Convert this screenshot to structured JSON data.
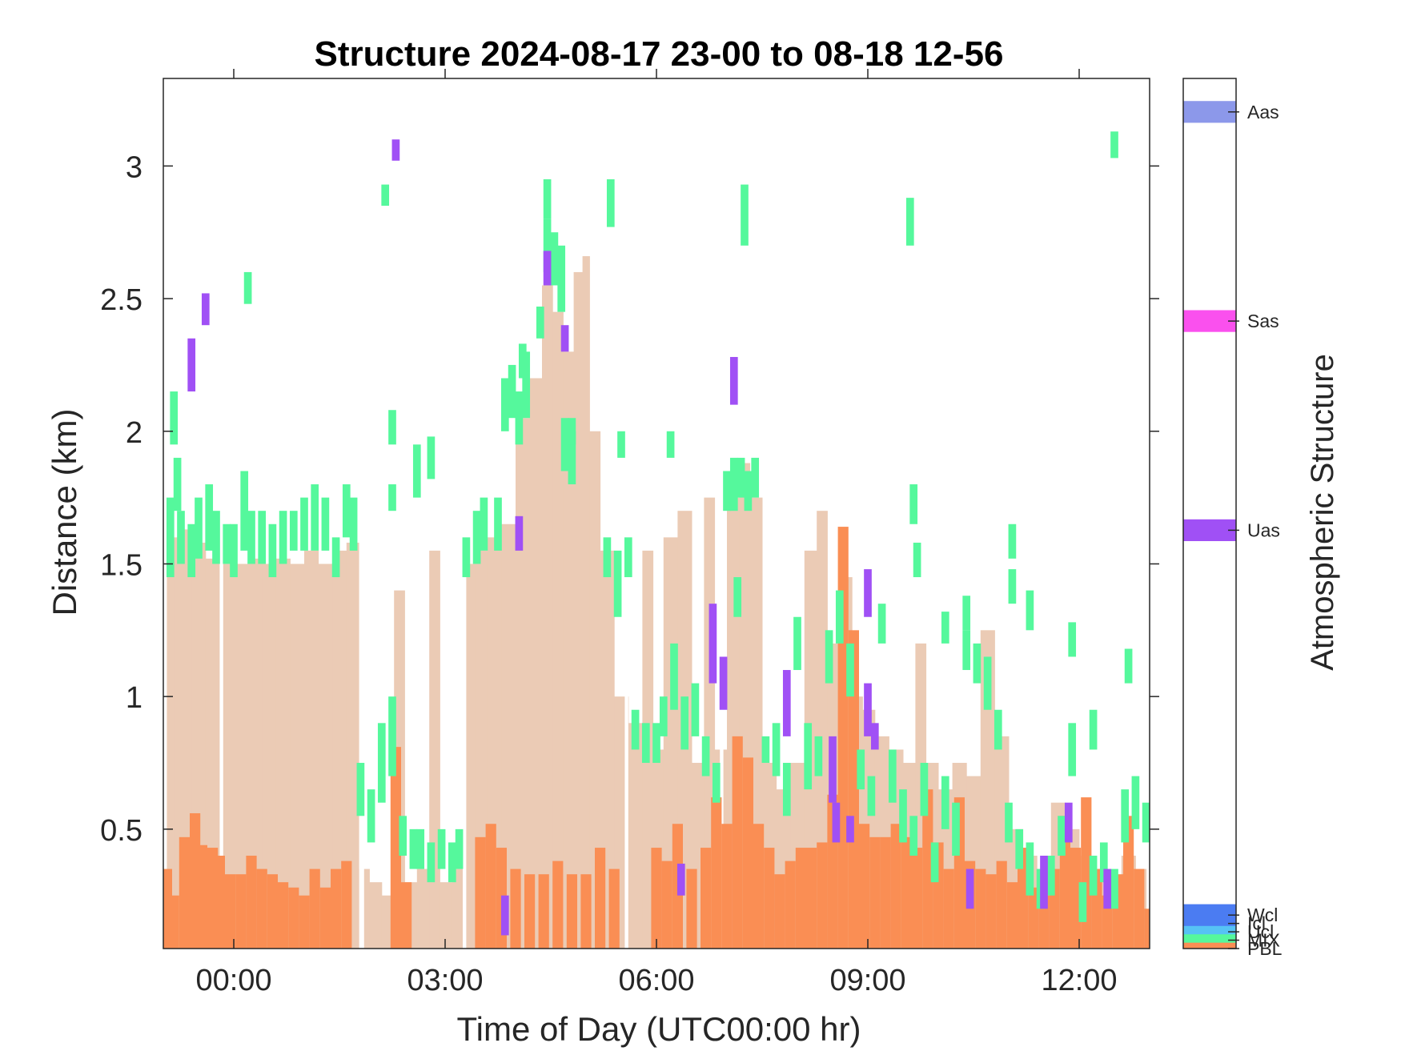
{
  "chart_data": {
    "type": "heatmap",
    "title": "Structure 2024-08-17 23-00 to 08-18 12-56",
    "xlabel": "Time of Day (UTC00:00 hr)",
    "ylabel": "Distance (km)",
    "colorbar_label": "Atmospheric Structure",
    "xlim_hours": [
      -1.0,
      13.0
    ],
    "ylim_km": [
      0.05,
      3.33
    ],
    "x_ticks": [
      {
        "value": 0,
        "label": "00:00"
      },
      {
        "value": 3,
        "label": "03:00"
      },
      {
        "value": 6,
        "label": "06:00"
      },
      {
        "value": 9,
        "label": "09:00"
      },
      {
        "value": 12,
        "label": "12:00"
      }
    ],
    "y_ticks": [
      {
        "value": 0.5,
        "label": "0.5"
      },
      {
        "value": 1.0,
        "label": "1"
      },
      {
        "value": 1.5,
        "label": "1.5"
      },
      {
        "value": 2.0,
        "label": "2"
      },
      {
        "value": 2.5,
        "label": "2.5"
      },
      {
        "value": 3.0,
        "label": "3"
      }
    ],
    "categories": [
      {
        "label": "PBL",
        "color": "#EBCBB5",
        "cbar_value": 0.0
      },
      {
        "label": "MIX",
        "color": "#FA8E54",
        "cbar_value": 0.1
      },
      {
        "label": "Ucl",
        "color": "#55F89C",
        "cbar_value": 0.2
      },
      {
        "label": "Icl",
        "color": "#56C2F5",
        "cbar_value": 0.3
      },
      {
        "label": "Wcl",
        "color": "#4B7CF2",
        "cbar_value": 0.4
      },
      {
        "label": "Uas",
        "color": "#A050F5",
        "cbar_value": 5.0
      },
      {
        "label": "Sas",
        "color": "#FA50EE",
        "cbar_value": 7.5
      },
      {
        "label": "Aas",
        "color": "#8C98EA",
        "cbar_value": 10.0
      }
    ],
    "cbar_range": [
      0,
      10.4
    ],
    "pbl_top_km": [
      [
        -0.9,
        1.58
      ],
      [
        -0.8,
        1.6
      ],
      [
        -0.7,
        1.63
      ],
      [
        -0.5,
        1.58
      ],
      [
        -0.3,
        1.52
      ],
      [
        -0.1,
        1.5
      ],
      [
        0.1,
        1.5
      ],
      [
        0.3,
        1.52
      ],
      [
        0.5,
        1.5
      ],
      [
        0.7,
        1.52
      ],
      [
        0.9,
        1.5
      ],
      [
        1.1,
        1.55
      ],
      [
        1.3,
        1.5
      ],
      [
        1.5,
        1.55
      ],
      [
        1.7,
        1.58
      ],
      [
        1.85,
        0.35
      ],
      [
        2.0,
        0.3
      ],
      [
        2.2,
        0.25
      ],
      [
        2.35,
        1.4
      ],
      [
        2.5,
        0.3
      ],
      [
        2.7,
        0.35
      ],
      [
        2.85,
        1.55
      ],
      [
        3.0,
        0.3
      ],
      [
        3.2,
        0.35
      ],
      [
        3.35,
        1.5
      ],
      [
        3.5,
        1.55
      ],
      [
        3.7,
        1.6
      ],
      [
        3.9,
        1.65
      ],
      [
        4.1,
        2.05
      ],
      [
        4.3,
        2.2
      ],
      [
        4.45,
        2.55
      ],
      [
        4.6,
        2.45
      ],
      [
        4.75,
        2.3
      ],
      [
        4.9,
        2.6
      ],
      [
        5.0,
        2.66
      ],
      [
        5.1,
        2.0
      ],
      [
        5.3,
        1.55
      ],
      [
        5.5,
        1.0
      ],
      [
        5.7,
        0.9
      ],
      [
        5.9,
        1.55
      ],
      [
        6.0,
        0.8
      ],
      [
        6.2,
        1.6
      ],
      [
        6.4,
        1.7
      ],
      [
        6.6,
        0.75
      ],
      [
        6.75,
        1.75
      ],
      [
        6.9,
        0.8
      ],
      [
        7.1,
        1.75
      ],
      [
        7.25,
        1.88
      ],
      [
        7.4,
        1.75
      ],
      [
        7.6,
        0.75
      ],
      [
        7.8,
        0.65
      ],
      [
        8.0,
        0.75
      ],
      [
        8.2,
        1.55
      ],
      [
        8.35,
        1.7
      ],
      [
        8.5,
        1.2
      ],
      [
        8.7,
        1.45
      ],
      [
        8.85,
        1.0
      ],
      [
        9.0,
        0.95
      ],
      [
        9.2,
        0.85
      ],
      [
        9.4,
        0.8
      ],
      [
        9.6,
        0.75
      ],
      [
        9.75,
        1.2
      ],
      [
        9.9,
        0.75
      ],
      [
        10.1,
        0.65
      ],
      [
        10.3,
        0.75
      ],
      [
        10.5,
        0.7
      ],
      [
        10.7,
        1.25
      ],
      [
        10.9,
        0.85
      ],
      [
        11.1,
        0.5
      ],
      [
        11.3,
        0.4
      ],
      [
        11.5,
        0.35
      ],
      [
        11.7,
        0.6
      ],
      [
        11.9,
        0.5
      ],
      [
        12.1,
        0.4
      ],
      [
        12.3,
        0.35
      ],
      [
        12.5,
        0.3
      ],
      [
        12.7,
        0.4
      ],
      [
        12.9,
        0.35
      ]
    ],
    "pbl_gaps_hours": [
      [
        -0.2,
        -0.15
      ],
      [
        1.78,
        1.85
      ],
      [
        3.25,
        3.3
      ],
      [
        5.55,
        5.6
      ],
      [
        6.9,
        6.95
      ]
    ],
    "mix_top_km": [
      [
        -0.95,
        0.35
      ],
      [
        -0.85,
        0.25
      ],
      [
        -0.7,
        0.47
      ],
      [
        -0.55,
        0.56
      ],
      [
        -0.45,
        0.44
      ],
      [
        -0.3,
        0.43
      ],
      [
        -0.2,
        0.4
      ],
      [
        -0.05,
        0.33
      ],
      [
        0.1,
        0.33
      ],
      [
        0.25,
        0.4
      ],
      [
        0.4,
        0.35
      ],
      [
        0.55,
        0.33
      ],
      [
        0.7,
        0.3
      ],
      [
        0.85,
        0.28
      ],
      [
        1.0,
        0.25
      ],
      [
        1.15,
        0.35
      ],
      [
        1.3,
        0.28
      ],
      [
        1.45,
        0.35
      ],
      [
        1.6,
        0.38
      ],
      [
        2.3,
        0.81
      ],
      [
        2.45,
        0.3
      ],
      [
        3.5,
        0.47
      ],
      [
        3.65,
        0.52
      ],
      [
        3.8,
        0.43
      ],
      [
        4.0,
        0.35
      ],
      [
        4.2,
        0.33
      ],
      [
        4.4,
        0.33
      ],
      [
        4.6,
        0.38
      ],
      [
        4.8,
        0.33
      ],
      [
        5.0,
        0.33
      ],
      [
        5.2,
        0.43
      ],
      [
        5.4,
        0.35
      ],
      [
        6.0,
        0.43
      ],
      [
        6.15,
        0.38
      ],
      [
        6.3,
        0.52
      ],
      [
        6.5,
        0.35
      ],
      [
        6.7,
        0.43
      ],
      [
        6.85,
        0.62
      ],
      [
        7.0,
        0.52
      ],
      [
        7.15,
        0.85
      ],
      [
        7.3,
        0.77
      ],
      [
        7.45,
        0.52
      ],
      [
        7.6,
        0.43
      ],
      [
        7.75,
        0.33
      ],
      [
        7.9,
        0.38
      ],
      [
        8.05,
        0.43
      ],
      [
        8.2,
        0.43
      ],
      [
        8.35,
        0.45
      ],
      [
        8.5,
        0.63
      ],
      [
        8.65,
        1.64
      ],
      [
        8.8,
        1.25
      ],
      [
        8.95,
        0.52
      ],
      [
        9.1,
        0.47
      ],
      [
        9.25,
        0.47
      ],
      [
        9.4,
        0.52
      ],
      [
        9.55,
        0.47
      ],
      [
        9.7,
        0.43
      ],
      [
        9.85,
        0.65
      ],
      [
        10.0,
        0.45
      ],
      [
        10.15,
        0.35
      ],
      [
        10.3,
        0.62
      ],
      [
        10.45,
        0.38
      ],
      [
        10.6,
        0.35
      ],
      [
        10.75,
        0.33
      ],
      [
        10.9,
        0.38
      ],
      [
        11.05,
        0.3
      ],
      [
        11.2,
        0.43
      ],
      [
        11.35,
        0.28
      ],
      [
        11.5,
        0.25
      ],
      [
        11.65,
        0.35
      ],
      [
        11.8,
        0.55
      ],
      [
        11.95,
        0.43
      ],
      [
        12.1,
        0.62
      ],
      [
        12.25,
        0.35
      ],
      [
        12.4,
        0.25
      ],
      [
        12.55,
        0.33
      ],
      [
        12.7,
        0.55
      ],
      [
        12.85,
        0.35
      ],
      [
        13.0,
        0.2
      ]
    ],
    "ucl_cells": [
      [
        -0.9,
        1.45,
        1.75
      ],
      [
        -0.8,
        1.7,
        1.9
      ],
      [
        -0.75,
        1.5,
        1.7
      ],
      [
        -0.6,
        1.45,
        1.65
      ],
      [
        -0.5,
        1.52,
        1.75
      ],
      [
        -0.35,
        1.55,
        1.8
      ],
      [
        -0.25,
        1.5,
        1.7
      ],
      [
        -0.1,
        1.5,
        1.65
      ],
      [
        0.0,
        1.45,
        1.65
      ],
      [
        0.15,
        1.55,
        1.85
      ],
      [
        0.25,
        1.5,
        1.7
      ],
      [
        0.4,
        1.5,
        1.7
      ],
      [
        0.55,
        1.45,
        1.65
      ],
      [
        0.7,
        1.5,
        1.7
      ],
      [
        0.85,
        1.55,
        1.7
      ],
      [
        1.0,
        1.55,
        1.75
      ],
      [
        1.15,
        1.55,
        1.8
      ],
      [
        1.3,
        1.55,
        1.75
      ],
      [
        1.45,
        1.45,
        1.6
      ],
      [
        1.6,
        1.6,
        1.8
      ],
      [
        1.7,
        1.55,
        1.75
      ],
      [
        1.8,
        0.55,
        0.75
      ],
      [
        1.95,
        0.45,
        0.65
      ],
      [
        2.1,
        0.6,
        0.9
      ],
      [
        2.25,
        0.7,
        1.0
      ],
      [
        2.4,
        0.4,
        0.55
      ],
      [
        2.55,
        0.35,
        0.5
      ],
      [
        2.65,
        0.35,
        0.5
      ],
      [
        2.8,
        0.3,
        0.45
      ],
      [
        2.95,
        0.35,
        0.5
      ],
      [
        3.1,
        0.3,
        0.45
      ],
      [
        3.2,
        0.35,
        0.5
      ],
      [
        3.3,
        1.45,
        1.6
      ],
      [
        3.45,
        1.5,
        1.7
      ],
      [
        3.55,
        1.55,
        1.75
      ],
      [
        3.75,
        1.55,
        1.75
      ],
      [
        3.85,
        2.0,
        2.2
      ],
      [
        3.95,
        2.05,
        2.25
      ],
      [
        4.05,
        1.95,
        2.15
      ],
      [
        4.15,
        2.05,
        2.3
      ],
      [
        4.45,
        2.6,
        2.8
      ],
      [
        4.55,
        2.55,
        2.75
      ],
      [
        4.65,
        2.45,
        2.7
      ],
      [
        4.7,
        1.85,
        2.05
      ],
      [
        4.8,
        1.8,
        2.0
      ],
      [
        5.3,
        1.45,
        1.6
      ],
      [
        5.45,
        1.3,
        1.55
      ],
      [
        5.6,
        1.45,
        1.6
      ],
      [
        5.7,
        0.8,
        0.95
      ],
      [
        5.85,
        0.75,
        0.9
      ],
      [
        6.0,
        0.75,
        0.9
      ],
      [
        6.1,
        0.85,
        1.0
      ],
      [
        6.25,
        0.95,
        1.2
      ],
      [
        6.4,
        0.8,
        1.0
      ],
      [
        6.55,
        0.85,
        1.05
      ],
      [
        6.7,
        0.7,
        0.85
      ],
      [
        6.85,
        0.6,
        0.75
      ],
      [
        7.0,
        1.7,
        1.85
      ],
      [
        7.1,
        1.7,
        1.9
      ],
      [
        7.2,
        1.75,
        1.9
      ],
      [
        7.3,
        1.7,
        1.85
      ],
      [
        7.4,
        1.75,
        1.9
      ],
      [
        7.55,
        0.75,
        0.85
      ],
      [
        7.7,
        0.7,
        0.9
      ],
      [
        7.85,
        0.55,
        0.75
      ],
      [
        8.0,
        1.1,
        1.3
      ],
      [
        8.15,
        0.65,
        0.9
      ],
      [
        8.3,
        0.7,
        0.85
      ],
      [
        8.45,
        1.05,
        1.25
      ],
      [
        8.6,
        1.2,
        1.4
      ],
      [
        8.75,
        1.0,
        1.2
      ],
      [
        8.9,
        0.65,
        0.8
      ],
      [
        9.05,
        0.55,
        0.7
      ],
      [
        9.2,
        1.2,
        1.35
      ],
      [
        9.35,
        0.6,
        0.8
      ],
      [
        9.5,
        0.45,
        0.65
      ],
      [
        9.65,
        0.4,
        0.55
      ],
      [
        9.8,
        0.55,
        0.75
      ],
      [
        9.95,
        0.3,
        0.45
      ],
      [
        10.1,
        0.5,
        0.7
      ],
      [
        10.25,
        0.4,
        0.6
      ],
      [
        10.4,
        1.1,
        1.25
      ],
      [
        10.55,
        1.05,
        1.2
      ],
      [
        10.7,
        0.95,
        1.15
      ],
      [
        10.85,
        0.8,
        0.95
      ],
      [
        11.0,
        0.45,
        0.6
      ],
      [
        11.15,
        0.35,
        0.5
      ],
      [
        11.3,
        0.25,
        0.45
      ],
      [
        11.45,
        0.2,
        0.35
      ],
      [
        11.6,
        0.25,
        0.4
      ],
      [
        11.75,
        0.4,
        0.55
      ],
      [
        11.9,
        0.7,
        0.9
      ],
      [
        12.05,
        0.15,
        0.3
      ],
      [
        12.2,
        0.25,
        0.4
      ],
      [
        12.35,
        0.3,
        0.45
      ],
      [
        12.5,
        0.2,
        0.35
      ],
      [
        12.65,
        0.45,
        0.65
      ],
      [
        12.8,
        0.5,
        0.7
      ],
      [
        12.95,
        0.45,
        0.6
      ]
    ],
    "ucl_isolated": [
      [
        -0.85,
        1.95,
        2.15
      ],
      [
        0.2,
        2.48,
        2.6
      ],
      [
        2.15,
        2.85,
        2.93
      ],
      [
        2.25,
        1.95,
        2.08
      ],
      [
        2.25,
        1.7,
        1.8
      ],
      [
        2.6,
        1.75,
        1.95
      ],
      [
        2.8,
        1.82,
        1.98
      ],
      [
        4.45,
        2.8,
        2.95
      ],
      [
        5.35,
        2.77,
        2.95
      ],
      [
        7.25,
        2.7,
        2.93
      ],
      [
        9.6,
        2.7,
        2.88
      ],
      [
        12.5,
        3.03,
        3.13
      ],
      [
        4.1,
        2.2,
        2.33
      ],
      [
        4.35,
        2.35,
        2.47
      ],
      [
        4.8,
        1.95,
        2.05
      ],
      [
        5.5,
        1.9,
        2.0
      ],
      [
        6.2,
        1.9,
        2.0
      ],
      [
        7.15,
        1.3,
        1.45
      ],
      [
        9.7,
        1.45,
        1.58
      ],
      [
        9.65,
        1.65,
        1.8
      ],
      [
        10.1,
        1.2,
        1.32
      ],
      [
        10.4,
        1.25,
        1.38
      ],
      [
        11.05,
        1.35,
        1.48
      ],
      [
        11.05,
        1.52,
        1.65
      ],
      [
        11.3,
        1.25,
        1.4
      ],
      [
        11.9,
        1.15,
        1.28
      ],
      [
        12.7,
        1.05,
        1.18
      ],
      [
        12.2,
        0.8,
        0.95
      ]
    ],
    "uas_cells": [
      [
        -0.6,
        2.15,
        2.35
      ],
      [
        -0.4,
        2.4,
        2.52
      ],
      [
        2.3,
        3.02,
        3.1
      ],
      [
        4.05,
        1.55,
        1.68
      ],
      [
        4.45,
        2.55,
        2.68
      ],
      [
        4.7,
        2.3,
        2.4
      ],
      [
        6.35,
        0.25,
        0.37
      ],
      [
        6.8,
        1.05,
        1.35
      ],
      [
        6.95,
        0.95,
        1.15
      ],
      [
        7.1,
        2.1,
        2.28
      ],
      [
        7.85,
        0.85,
        1.1
      ],
      [
        8.5,
        0.6,
        0.85
      ],
      [
        8.55,
        0.45,
        0.6
      ],
      [
        8.75,
        0.45,
        0.55
      ],
      [
        9.0,
        1.3,
        1.48
      ],
      [
        9.0,
        0.85,
        1.05
      ],
      [
        9.1,
        0.8,
        0.9
      ],
      [
        10.45,
        0.2,
        0.35
      ],
      [
        11.5,
        0.2,
        0.4
      ],
      [
        11.85,
        0.45,
        0.6
      ],
      [
        12.4,
        0.2,
        0.35
      ],
      [
        3.85,
        0.1,
        0.25
      ]
    ]
  }
}
